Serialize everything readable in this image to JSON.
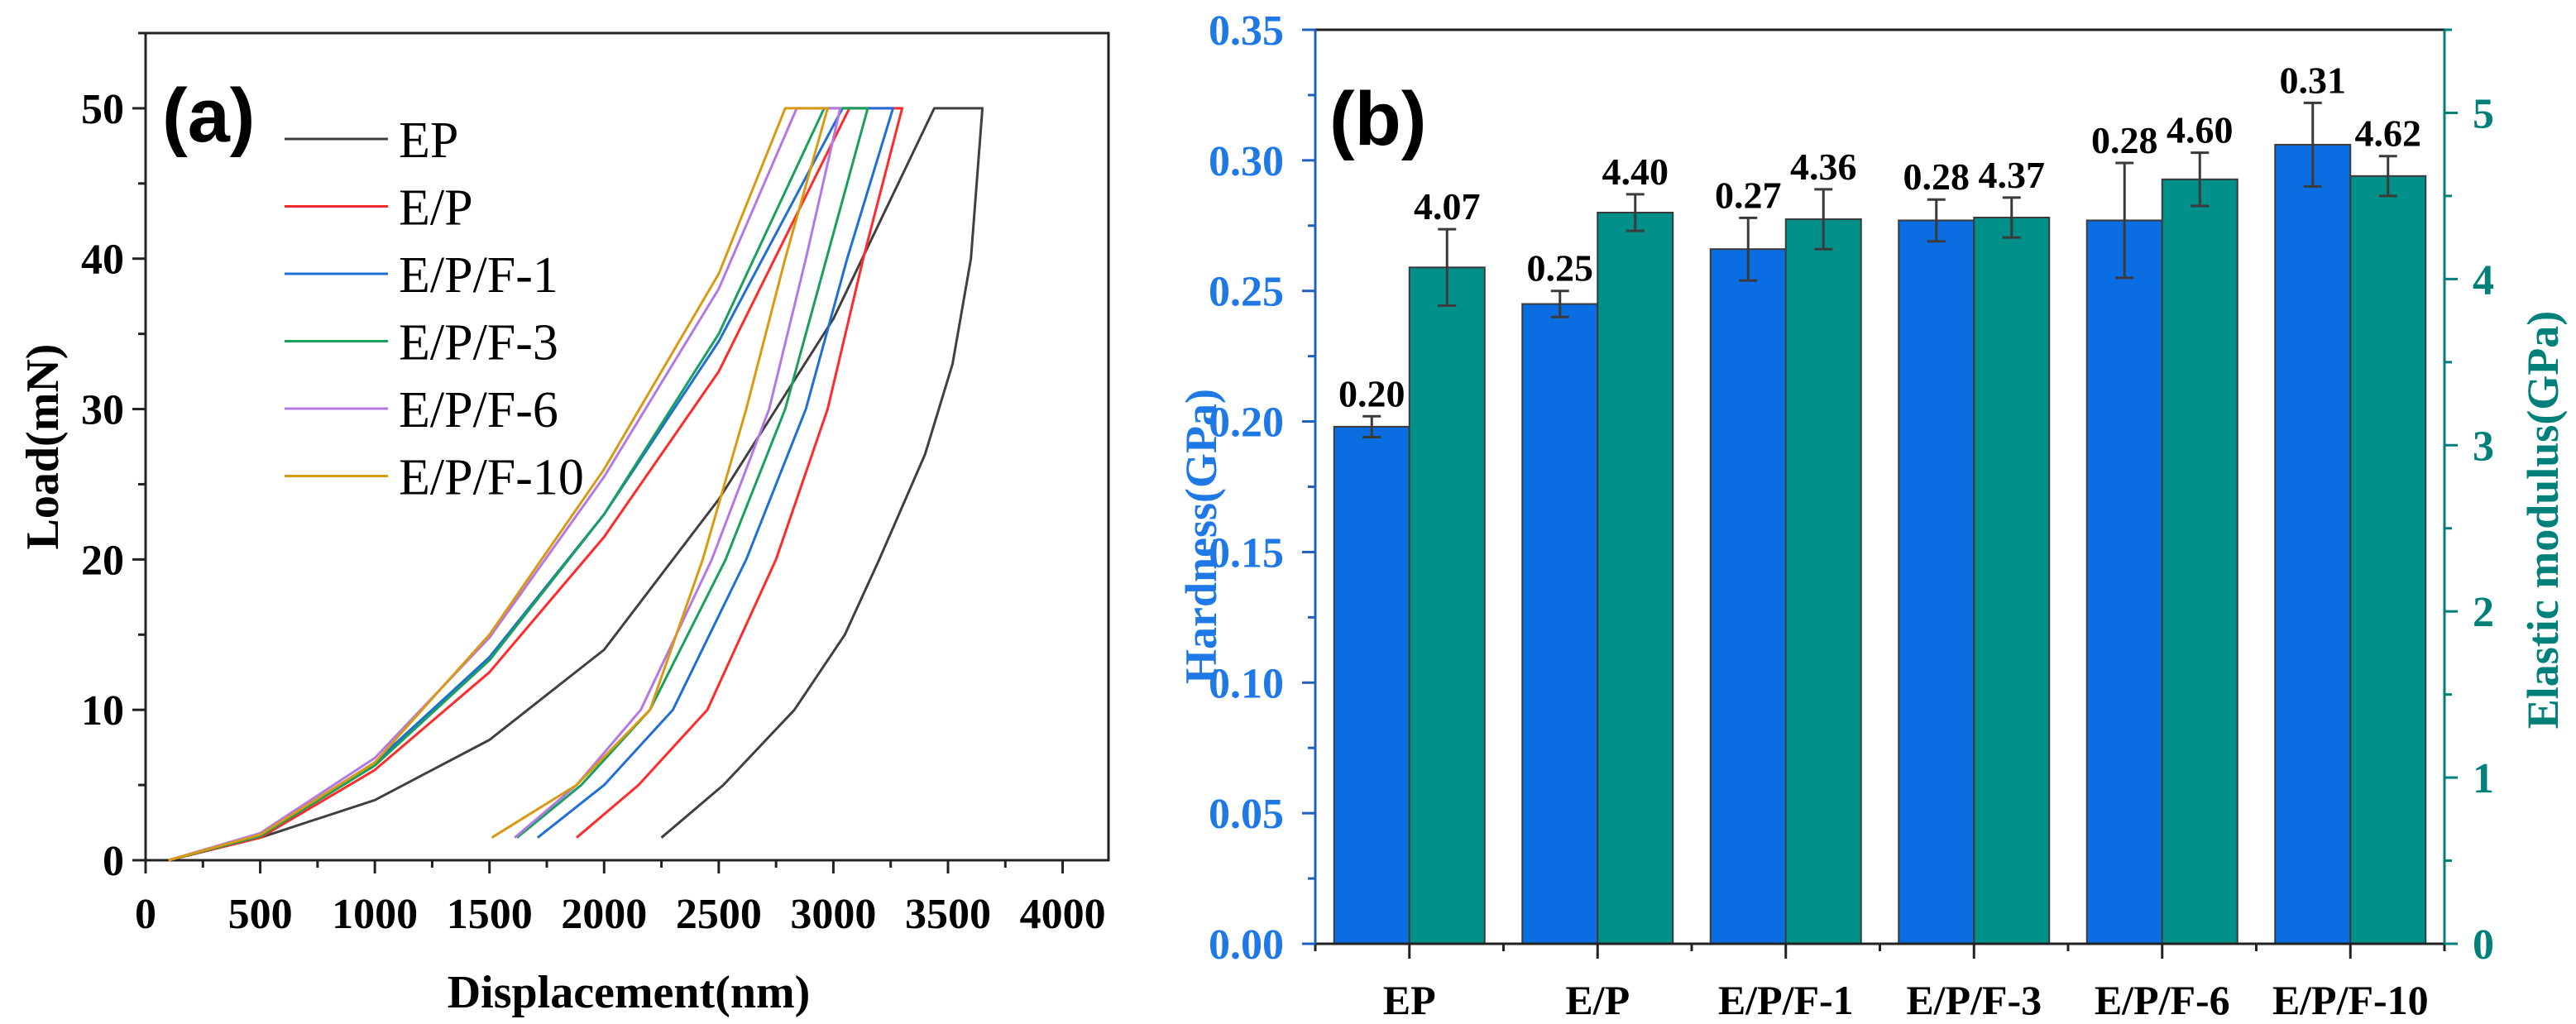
{
  "chart_data": [
    {
      "type": "line",
      "panel_label": "(a)",
      "xlabel": "Displacement(nm)",
      "ylabel": "Load(mN)",
      "xlim": [
        0,
        4200
      ],
      "ylim": [
        0,
        55
      ],
      "xticks": [
        0,
        500,
        1000,
        1500,
        2000,
        2500,
        3000,
        3500,
        4000
      ],
      "yticks": [
        0,
        10,
        20,
        30,
        40,
        50
      ],
      "grid": false,
      "legend": "top-left",
      "series": [
        {
          "name": "EP",
          "color": "#404040",
          "points": [
            [
              100,
              0
            ],
            [
              500,
              1.5
            ],
            [
              1000,
              4
            ],
            [
              1500,
              8
            ],
            [
              2000,
              14
            ],
            [
              2500,
              24
            ],
            [
              3000,
              36
            ],
            [
              3440,
              50
            ],
            [
              3650,
              50
            ],
            [
              3600,
              40
            ],
            [
              3520,
              33
            ],
            [
              3400,
              27
            ],
            [
              3200,
              20
            ],
            [
              3050,
              15
            ],
            [
              2830,
              10
            ],
            [
              2520,
              5
            ],
            [
              2250,
              1.5
            ]
          ]
        },
        {
          "name": "E/P",
          "color": "#ff2a2a",
          "points": [
            [
              100,
              0
            ],
            [
              500,
              1.5
            ],
            [
              1000,
              6
            ],
            [
              1500,
              12.5
            ],
            [
              2000,
              21.5
            ],
            [
              2500,
              32.5
            ],
            [
              3070,
              50
            ],
            [
              3300,
              50
            ],
            [
              3130,
              40
            ],
            [
              2975,
              30
            ],
            [
              2750,
              20
            ],
            [
              2450,
              10
            ],
            [
              2150,
              5
            ],
            [
              1880,
              1.5
            ]
          ]
        },
        {
          "name": "E/P/F-1",
          "color": "#1f6fd6",
          "points": [
            [
              100,
              0
            ],
            [
              500,
              1.7
            ],
            [
              1000,
              6.5
            ],
            [
              1500,
              13.5
            ],
            [
              2000,
              23
            ],
            [
              2500,
              34.5
            ],
            [
              3040,
              50
            ],
            [
              3260,
              50
            ],
            [
              3060,
              40
            ],
            [
              2880,
              30
            ],
            [
              2620,
              20
            ],
            [
              2300,
              10
            ],
            [
              2000,
              5
            ],
            [
              1710,
              1.5
            ]
          ]
        },
        {
          "name": "E/P/F-3",
          "color": "#18a05c",
          "points": [
            [
              100,
              0
            ],
            [
              500,
              1.6
            ],
            [
              1000,
              6.3
            ],
            [
              1500,
              13.3
            ],
            [
              2000,
              23
            ],
            [
              2500,
              35
            ],
            [
              2960,
              50
            ],
            [
              3150,
              50
            ],
            [
              2970,
              40
            ],
            [
              2790,
              30
            ],
            [
              2530,
              20
            ],
            [
              2200,
              10
            ],
            [
              1900,
              5
            ],
            [
              1620,
              1.5
            ]
          ]
        },
        {
          "name": "E/P/F-6",
          "color": "#b478e6",
          "points": [
            [
              100,
              0
            ],
            [
              500,
              1.8
            ],
            [
              1000,
              6.8
            ],
            [
              1500,
              14.8
            ],
            [
              2000,
              25.5
            ],
            [
              2500,
              38
            ],
            [
              2840,
              50
            ],
            [
              3030,
              50
            ],
            [
              2880,
              40
            ],
            [
              2720,
              30
            ],
            [
              2470,
              20
            ],
            [
              2160,
              10
            ],
            [
              1880,
              5
            ],
            [
              1610,
              1.5
            ]
          ]
        },
        {
          "name": "E/P/F-10",
          "color": "#d99a12",
          "points": [
            [
              100,
              0
            ],
            [
              500,
              1.7
            ],
            [
              1000,
              6.5
            ],
            [
              1500,
              15
            ],
            [
              2000,
              26
            ],
            [
              2500,
              39
            ],
            [
              2790,
              50
            ],
            [
              2975,
              50
            ],
            [
              2790,
              40
            ],
            [
              2620,
              30
            ],
            [
              2430,
              20
            ],
            [
              2200,
              10
            ],
            [
              1880,
              5
            ],
            [
              1510,
              1.5
            ]
          ]
        }
      ]
    },
    {
      "type": "bar",
      "panel_label": "(b)",
      "categories": [
        "EP",
        "E/P",
        "E/P/F-1",
        "E/P/F-3",
        "E/P/F-6",
        "E/P/F-10"
      ],
      "ylabel": "Hardness(GPa)",
      "ylabel_right": "Elastic modulus(GPa)",
      "ylim": [
        0,
        0.35
      ],
      "ylim_right": [
        0,
        5.5
      ],
      "yticks": [
        "0.00",
        "0.05",
        "0.10",
        "0.15",
        "0.20",
        "0.25",
        "0.30",
        "0.35"
      ],
      "yticks_right": [
        "0",
        "1",
        "2",
        "3",
        "4",
        "5"
      ],
      "grid": false,
      "series": [
        {
          "name": "Hardness",
          "axis": "left",
          "color": "#0a6ee2",
          "values": [
            0.198,
            0.245,
            0.266,
            0.277,
            0.277,
            0.306
          ],
          "errors": [
            0.004,
            0.005,
            0.012,
            0.008,
            0.022,
            0.016
          ],
          "labels": [
            "0.20",
            "0.25",
            "0.27",
            "0.28",
            "0.28",
            "0.31"
          ]
        },
        {
          "name": "Elastic modulus",
          "axis": "right",
          "color": "#00908a",
          "values": [
            4.07,
            4.4,
            4.36,
            4.37,
            4.6,
            4.62
          ],
          "errors": [
            0.23,
            0.11,
            0.18,
            0.12,
            0.16,
            0.12
          ],
          "labels": [
            "4.07",
            "4.40",
            "4.36",
            "4.37",
            "4.60",
            "4.62"
          ]
        }
      ],
      "colors": {
        "left_axis": "#1e78e6",
        "right_axis": "#00807a"
      }
    }
  ]
}
